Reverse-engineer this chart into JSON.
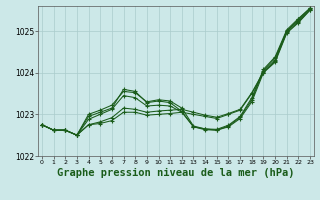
{
  "title": "Graphe pression niveau de la mer (hPa)",
  "xlabel_hours": [
    0,
    1,
    2,
    3,
    4,
    5,
    6,
    7,
    8,
    9,
    10,
    11,
    12,
    13,
    14,
    15,
    16,
    17,
    18,
    19,
    20,
    21,
    22,
    23
  ],
  "lines": [
    [
      1022.75,
      1022.62,
      1022.62,
      1022.5,
      1022.95,
      1023.05,
      1023.15,
      1023.6,
      1023.55,
      1023.28,
      1023.32,
      1023.28,
      1023.07,
      1022.7,
      1022.65,
      1022.62,
      1022.72,
      1022.93,
      1023.35,
      1024.05,
      1024.35,
      1025.0,
      1025.28,
      1025.55
    ],
    [
      1022.75,
      1022.62,
      1022.62,
      1022.5,
      1022.88,
      1023.0,
      1023.12,
      1023.45,
      1023.4,
      1023.2,
      1023.22,
      1023.2,
      1023.05,
      1022.7,
      1022.63,
      1022.62,
      1022.7,
      1022.9,
      1023.3,
      1024.0,
      1024.3,
      1025.0,
      1025.25,
      1025.52
    ],
    [
      1022.75,
      1022.62,
      1022.62,
      1022.5,
      1023.0,
      1023.1,
      1023.22,
      1023.55,
      1023.52,
      1023.3,
      1023.35,
      1023.32,
      1023.15,
      1022.72,
      1022.65,
      1022.64,
      1022.74,
      1022.95,
      1023.4,
      1024.08,
      1024.38,
      1025.03,
      1025.3,
      1025.55
    ],
    [
      1022.75,
      1022.62,
      1022.62,
      1022.5,
      1022.75,
      1022.78,
      1022.85,
      1023.05,
      1023.05,
      1022.98,
      1023.0,
      1023.02,
      1023.05,
      1023.0,
      1022.95,
      1022.9,
      1023.0,
      1023.1,
      1023.5,
      1024.0,
      1024.25,
      1024.95,
      1025.2,
      1025.5
    ],
    [
      1022.75,
      1022.62,
      1022.62,
      1022.5,
      1022.75,
      1022.82,
      1022.92,
      1023.15,
      1023.12,
      1023.05,
      1023.08,
      1023.1,
      1023.12,
      1023.05,
      1022.98,
      1022.93,
      1023.02,
      1023.12,
      1023.52,
      1024.02,
      1024.28,
      1024.97,
      1025.22,
      1025.51
    ]
  ],
  "bg_color": "#cce8e8",
  "grid_color": "#aacccc",
  "line_color": "#1a5c1a",
  "marker": "+",
  "ylim": [
    1022.0,
    1025.6
  ],
  "yticks": [
    1022,
    1023,
    1024,
    1025
  ],
  "title_fontsize": 7.5,
  "tick_fontsize": 5.5
}
